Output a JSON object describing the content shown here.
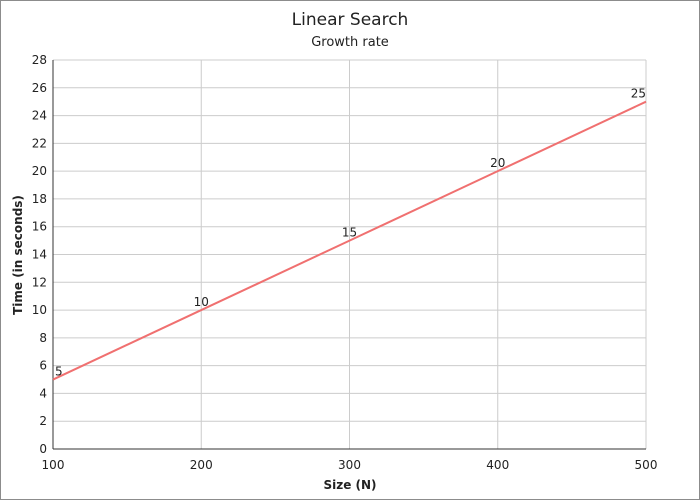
{
  "chart_data": {
    "type": "line",
    "title": "Linear Search",
    "subtitle": "Growth rate",
    "xlabel": "Size (N)",
    "ylabel": "Time (in seconds)",
    "x": [
      100,
      200,
      300,
      400,
      500
    ],
    "series": [
      {
        "values": [
          5,
          10,
          15,
          20,
          25
        ],
        "color": "#f07070"
      }
    ],
    "data_labels": [
      "5",
      "10",
      "15",
      "20",
      "25"
    ],
    "xlim": [
      100,
      500
    ],
    "ylim": [
      0,
      28
    ],
    "x_ticks": [
      100,
      200,
      300,
      400,
      500
    ],
    "y_ticks": [
      0,
      2,
      4,
      6,
      8,
      10,
      12,
      14,
      16,
      18,
      20,
      22,
      24,
      26,
      28
    ],
    "grid": true,
    "legend": "none"
  }
}
